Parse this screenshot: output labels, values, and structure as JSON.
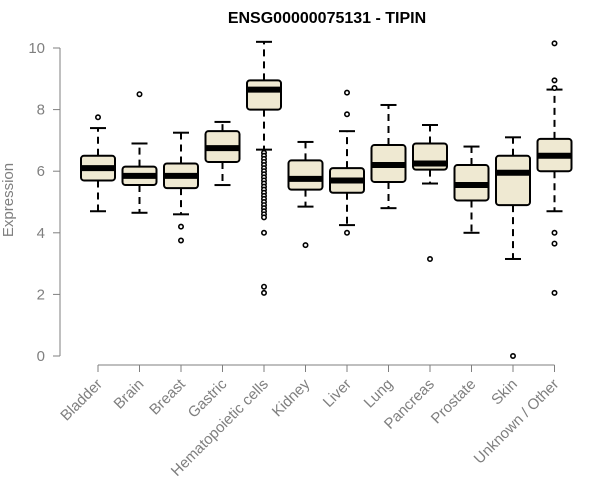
{
  "chart_data": {
    "type": "boxplot",
    "title": "ENSG00000075131 - TIPIN",
    "xlabel": "",
    "ylabel": "Expression",
    "ylim": [
      0,
      10.3
    ],
    "yticks": [
      0,
      2,
      4,
      6,
      8,
      10
    ],
    "grid": false,
    "legend": "none",
    "box_fill": "#efe9d2",
    "categories": [
      "Bladder",
      "Brain",
      "Breast",
      "Gastric",
      "Hematopoietic cells",
      "Kidney",
      "Liver",
      "Lung",
      "Pancreas",
      "Prostate",
      "Skin",
      "Unknown / Other"
    ],
    "boxes": [
      {
        "min": 4.7,
        "q1": 5.7,
        "median": 6.1,
        "q3": 6.5,
        "max": 7.4,
        "outliers": [
          7.75
        ]
      },
      {
        "min": 4.65,
        "q1": 5.55,
        "median": 5.85,
        "q3": 6.15,
        "max": 6.9,
        "outliers": [
          8.5
        ]
      },
      {
        "min": 4.6,
        "q1": 5.45,
        "median": 5.85,
        "q3": 6.25,
        "max": 7.25,
        "outliers": [
          4.2,
          3.75
        ]
      },
      {
        "min": 5.55,
        "q1": 6.3,
        "median": 6.75,
        "q3": 7.3,
        "max": 7.6,
        "outliers": []
      },
      {
        "min": 6.7,
        "q1": 8.0,
        "median": 8.65,
        "q3": 8.95,
        "max": 10.2,
        "outliers": [
          6.6,
          6.5,
          6.4,
          6.3,
          6.2,
          6.1,
          6.0,
          5.9,
          5.8,
          5.7,
          5.6,
          5.5,
          5.4,
          5.3,
          5.2,
          5.1,
          5.0,
          4.9,
          4.8,
          4.7,
          4.6,
          4.5,
          4.0,
          2.25,
          2.05
        ]
      },
      {
        "min": 4.85,
        "q1": 5.4,
        "median": 5.75,
        "q3": 6.35,
        "max": 6.95,
        "outliers": [
          3.6
        ]
      },
      {
        "min": 4.25,
        "q1": 5.3,
        "median": 5.7,
        "q3": 6.1,
        "max": 7.3,
        "outliers": [
          8.55,
          7.85,
          4.0
        ]
      },
      {
        "min": 4.8,
        "q1": 5.65,
        "median": 6.2,
        "q3": 6.85,
        "max": 8.15,
        "outliers": []
      },
      {
        "min": 5.6,
        "q1": 6.05,
        "median": 6.25,
        "q3": 6.9,
        "max": 7.5,
        "outliers": [
          3.15
        ]
      },
      {
        "min": 4.0,
        "q1": 5.05,
        "median": 5.55,
        "q3": 6.2,
        "max": 6.8,
        "outliers": []
      },
      {
        "min": 3.15,
        "q1": 4.9,
        "median": 5.95,
        "q3": 6.5,
        "max": 7.1,
        "outliers": [
          0.0
        ]
      },
      {
        "min": 4.7,
        "q1": 6.0,
        "median": 6.5,
        "q3": 7.05,
        "max": 8.65,
        "outliers": [
          10.15,
          8.95,
          8.7,
          4.0,
          3.65,
          2.05
        ]
      }
    ]
  }
}
